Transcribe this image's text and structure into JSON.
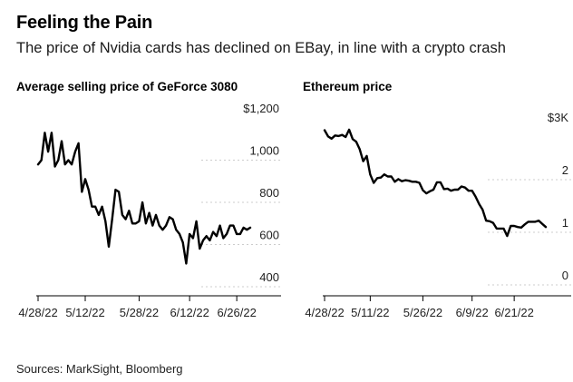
{
  "header": {
    "title": "Feeling the Pain",
    "subtitle": "The price of Nvidia cards has declined on EBay, in line with a crypto crash"
  },
  "footer": {
    "source": "Sources: MarkSight, Bloomberg"
  },
  "colors": {
    "line": "#000000",
    "grid": "#cccccc",
    "axis": "#000000",
    "text": "#222222"
  },
  "chart_data": [
    {
      "type": "line",
      "title": "Average selling price of GeForce 3080",
      "xlabel": "",
      "ylabel": "",
      "ylim": [
        400,
        1200
      ],
      "xlim": [
        "2022-04-28",
        "2022-06-30"
      ],
      "yticks": [
        400,
        600,
        800,
        1000,
        1200
      ],
      "ytick_labels": [
        "400",
        "600",
        "800",
        "1,000",
        "$1,200"
      ],
      "xticks": [
        "2022-04-28",
        "2022-05-12",
        "2022-05-28",
        "2022-06-12",
        "2022-06-26"
      ],
      "xtick_labels": [
        "4/28/22",
        "5/12/22",
        "5/28/22",
        "6/12/22",
        "6/26/22"
      ],
      "grid": true,
      "series": [
        {
          "x": [
            "2022-04-28",
            "2022-04-29",
            "2022-04-30",
            "2022-05-01",
            "2022-05-02",
            "2022-05-03",
            "2022-05-04",
            "2022-05-05",
            "2022-05-06",
            "2022-05-07",
            "2022-05-08",
            "2022-05-09",
            "2022-05-10",
            "2022-05-11",
            "2022-05-12",
            "2022-05-13",
            "2022-05-14",
            "2022-05-15",
            "2022-05-16",
            "2022-05-17",
            "2022-05-18",
            "2022-05-19",
            "2022-05-20",
            "2022-05-21",
            "2022-05-22",
            "2022-05-23",
            "2022-05-24",
            "2022-05-25",
            "2022-05-26",
            "2022-05-27",
            "2022-05-28",
            "2022-05-29",
            "2022-05-30",
            "2022-05-31",
            "2022-06-01",
            "2022-06-02",
            "2022-06-03",
            "2022-06-04",
            "2022-06-05",
            "2022-06-06",
            "2022-06-07",
            "2022-06-08",
            "2022-06-09",
            "2022-06-10",
            "2022-06-11",
            "2022-06-12",
            "2022-06-13",
            "2022-06-14",
            "2022-06-15",
            "2022-06-16",
            "2022-06-17",
            "2022-06-18",
            "2022-06-19",
            "2022-06-20",
            "2022-06-21",
            "2022-06-22",
            "2022-06-23",
            "2022-06-24",
            "2022-06-25",
            "2022-06-26",
            "2022-06-27",
            "2022-06-28",
            "2022-06-29",
            "2022-06-30"
          ],
          "values": [
            980,
            1000,
            1130,
            1040,
            1130,
            970,
            1000,
            1090,
            980,
            1000,
            980,
            1040,
            1080,
            850,
            910,
            860,
            780,
            780,
            740,
            780,
            710,
            590,
            720,
            860,
            850,
            740,
            720,
            760,
            700,
            700,
            710,
            800,
            700,
            750,
            690,
            740,
            690,
            670,
            690,
            730,
            720,
            670,
            650,
            610,
            510,
            650,
            630,
            710,
            580,
            620,
            640,
            620,
            660,
            640,
            690,
            630,
            650,
            690,
            690,
            650,
            650,
            680,
            670,
            680
          ]
        }
      ]
    },
    {
      "type": "line",
      "title": "Ethereum price",
      "xlabel": "",
      "ylabel": "",
      "ylim": [
        0,
        3
      ],
      "xlim": [
        "2022-04-28",
        "2022-06-30"
      ],
      "yticks": [
        0,
        1,
        2,
        3
      ],
      "ytick_labels": [
        "0",
        "1",
        "2",
        "$3K"
      ],
      "xticks": [
        "2022-04-28",
        "2022-05-11",
        "2022-05-26",
        "2022-06-09",
        "2022-06-21"
      ],
      "xtick_labels": [
        "4/28/22",
        "5/11/22",
        "5/26/22",
        "6/9/22",
        "6/21/22"
      ],
      "grid": true,
      "series": [
        {
          "x": [
            "2022-04-28",
            "2022-04-29",
            "2022-04-30",
            "2022-05-01",
            "2022-05-02",
            "2022-05-03",
            "2022-05-04",
            "2022-05-05",
            "2022-05-06",
            "2022-05-07",
            "2022-05-08",
            "2022-05-09",
            "2022-05-10",
            "2022-05-11",
            "2022-05-12",
            "2022-05-13",
            "2022-05-14",
            "2022-05-15",
            "2022-05-16",
            "2022-05-17",
            "2022-05-18",
            "2022-05-19",
            "2022-05-20",
            "2022-05-21",
            "2022-05-22",
            "2022-05-23",
            "2022-05-24",
            "2022-05-25",
            "2022-05-26",
            "2022-05-27",
            "2022-05-28",
            "2022-05-29",
            "2022-05-30",
            "2022-05-31",
            "2022-06-01",
            "2022-06-02",
            "2022-06-03",
            "2022-06-04",
            "2022-06-05",
            "2022-06-06",
            "2022-06-07",
            "2022-06-08",
            "2022-06-09",
            "2022-06-10",
            "2022-06-11",
            "2022-06-12",
            "2022-06-13",
            "2022-06-14",
            "2022-06-15",
            "2022-06-16",
            "2022-06-17",
            "2022-06-18",
            "2022-06-19",
            "2022-06-20",
            "2022-06-21",
            "2022-06-22",
            "2022-06-23",
            "2022-06-24",
            "2022-06-25",
            "2022-06-26",
            "2022-06-27",
            "2022-06-28",
            "2022-06-29",
            "2022-06-30"
          ],
          "values": [
            2.94,
            2.82,
            2.78,
            2.84,
            2.83,
            2.85,
            2.81,
            2.95,
            2.77,
            2.72,
            2.58,
            2.35,
            2.45,
            2.1,
            1.94,
            2.03,
            2.04,
            2.1,
            2.06,
            2.06,
            1.96,
            2.01,
            1.97,
            1.99,
            1.98,
            1.96,
            1.96,
            1.94,
            1.8,
            1.74,
            1.78,
            1.81,
            1.95,
            1.95,
            1.82,
            1.83,
            1.79,
            1.81,
            1.81,
            1.87,
            1.85,
            1.79,
            1.79,
            1.68,
            1.54,
            1.43,
            1.22,
            1.21,
            1.18,
            1.07,
            1.07,
            1.07,
            0.93,
            1.12,
            1.12,
            1.1,
            1.09,
            1.15,
            1.2,
            1.2,
            1.2,
            1.22,
            1.16,
            1.1
          ]
        }
      ]
    }
  ]
}
